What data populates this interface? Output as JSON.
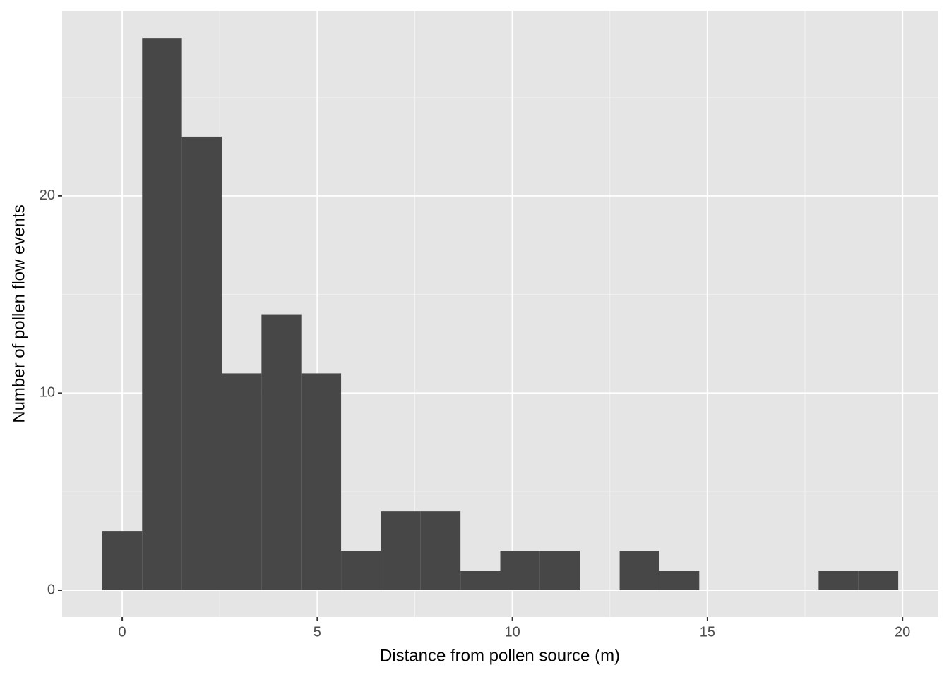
{
  "chart_data": {
    "type": "histogram",
    "x_label": "Distance from pollen source (m)",
    "y_label": "Number of pollen flow events",
    "bins": [
      -0.51,
      0.51,
      1.53,
      2.55,
      3.57,
      4.59,
      5.61,
      6.63,
      7.65,
      8.67,
      9.69,
      10.71,
      11.73,
      12.75,
      13.77,
      14.79,
      15.81,
      16.83,
      17.85,
      18.87,
      19.89
    ],
    "values": [
      3,
      28,
      23,
      11,
      14,
      11,
      2,
      4,
      4,
      1,
      2,
      2,
      0,
      2,
      1,
      0,
      0,
      0,
      1,
      1
    ],
    "color": "#474747",
    "xlim": [
      -1.54,
      20.92
    ],
    "ylim": [
      -1.36,
      29.4
    ],
    "xticks": [
      0,
      5,
      10,
      15,
      20
    ],
    "yticks": [
      0,
      10,
      20
    ],
    "x_minor_grid": [
      2.5,
      7.5,
      12.5,
      17.5
    ],
    "y_minor_grid": [
      5,
      15,
      25
    ],
    "grid": true
  }
}
